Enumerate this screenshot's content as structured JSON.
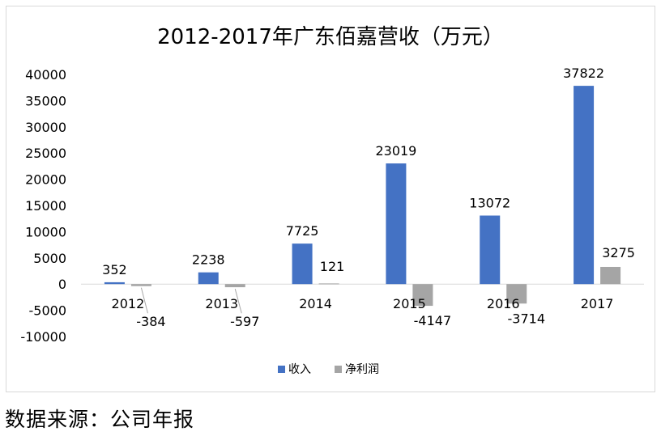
{
  "chart_data": {
    "type": "bar",
    "title": "2012-2017年广东佰嘉营收（万元）",
    "categories": [
      "2012",
      "2013",
      "2014",
      "2015",
      "2016",
      "2017"
    ],
    "series": [
      {
        "name": "收入",
        "values": [
          352,
          2238,
          7725,
          23019,
          13072,
          37822
        ],
        "color": "#4472c4"
      },
      {
        "name": "净利润",
        "values": [
          -384,
          -597,
          121,
          -4147,
          -3714,
          3275
        ],
        "color": "#a5a5a5"
      }
    ],
    "ylim": [
      -10000,
      40000
    ],
    "yticks": [
      40000,
      35000,
      30000,
      25000,
      20000,
      15000,
      10000,
      5000,
      0,
      -5000,
      -10000
    ],
    "grid": false,
    "legend": "bottom-center"
  },
  "source": "数据来源：公司年报"
}
